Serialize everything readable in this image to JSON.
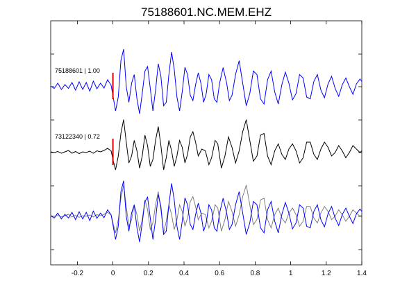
{
  "chart_data": {
    "type": "line",
    "title": "75188601.NC.MEM.EHZ",
    "xlabel": "",
    "ylabel": "",
    "xlim": [
      -0.35,
      1.4
    ],
    "xticks": [
      -0.2,
      0,
      0.2,
      0.4,
      0.6,
      0.8,
      1,
      1.2,
      1.4
    ],
    "xtick_labels": [
      "-0.2",
      "0",
      "0.2",
      "0.4",
      "0.6",
      "0.8",
      "1",
      "1.2",
      "1.4"
    ],
    "grid": false,
    "legend": "none",
    "pick_time": 0,
    "series": [
      {
        "label": "75188601 | 1.00",
        "color": "#0000ff",
        "row": 0,
        "points": [
          [
            -0.35,
            0.02
          ],
          [
            -0.33,
            -0.05
          ],
          [
            -0.31,
            0.1
          ],
          [
            -0.29,
            -0.08
          ],
          [
            -0.27,
            0.06
          ],
          [
            -0.25,
            -0.05
          ],
          [
            -0.23,
            0.12
          ],
          [
            -0.21,
            -0.1
          ],
          [
            -0.19,
            0.14
          ],
          [
            -0.17,
            -0.08
          ],
          [
            -0.15,
            0.12
          ],
          [
            -0.13,
            -0.13
          ],
          [
            -0.11,
            0.16
          ],
          [
            -0.09,
            -0.06
          ],
          [
            -0.07,
            0.1
          ],
          [
            -0.05,
            -0.04
          ],
          [
            -0.03,
            0.2
          ],
          [
            -0.01,
            0.04
          ],
          [
            0.0,
            -0.25
          ],
          [
            0.015,
            -0.7
          ],
          [
            0.03,
            -0.3
          ],
          [
            0.045,
            0.75
          ],
          [
            0.06,
            1.08
          ],
          [
            0.075,
            0.0
          ],
          [
            0.09,
            -0.45
          ],
          [
            0.105,
            0.1
          ],
          [
            0.12,
            0.35
          ],
          [
            0.135,
            -0.35
          ],
          [
            0.15,
            -0.78
          ],
          [
            0.165,
            -0.2
          ],
          [
            0.18,
            0.45
          ],
          [
            0.195,
            0.58
          ],
          [
            0.21,
            -0.05
          ],
          [
            0.225,
            -0.7
          ],
          [
            0.24,
            -0.1
          ],
          [
            0.255,
            0.66
          ],
          [
            0.27,
            0.3
          ],
          [
            0.285,
            -0.55
          ],
          [
            0.3,
            -0.45
          ],
          [
            0.315,
            0.35
          ],
          [
            0.33,
            1.0
          ],
          [
            0.345,
            0.5
          ],
          [
            0.36,
            -0.3
          ],
          [
            0.375,
            -0.7
          ],
          [
            0.39,
            -0.15
          ],
          [
            0.405,
            0.56
          ],
          [
            0.42,
            0.35
          ],
          [
            0.435,
            -0.25
          ],
          [
            0.45,
            -0.4
          ],
          [
            0.465,
            0.05
          ],
          [
            0.48,
            0.4
          ],
          [
            0.495,
            0.1
          ],
          [
            0.51,
            -0.45
          ],
          [
            0.525,
            -0.2
          ],
          [
            0.54,
            0.35
          ],
          [
            0.555,
            0.2
          ],
          [
            0.57,
            -0.35
          ],
          [
            0.585,
            -0.45
          ],
          [
            0.6,
            0.1
          ],
          [
            0.62,
            0.55
          ],
          [
            0.64,
            0.1
          ],
          [
            0.655,
            -0.4
          ],
          [
            0.67,
            -0.25
          ],
          [
            0.69,
            0.35
          ],
          [
            0.71,
            0.75
          ],
          [
            0.73,
            0.1
          ],
          [
            0.75,
            -0.55
          ],
          [
            0.77,
            -0.2
          ],
          [
            0.79,
            0.45
          ],
          [
            0.81,
            0.35
          ],
          [
            0.83,
            -0.35
          ],
          [
            0.85,
            -0.5
          ],
          [
            0.87,
            0.2
          ],
          [
            0.89,
            0.45
          ],
          [
            0.91,
            -0.15
          ],
          [
            0.93,
            -0.5
          ],
          [
            0.95,
            0.05
          ],
          [
            0.97,
            0.42
          ],
          [
            0.99,
            0.1
          ],
          [
            1.01,
            -0.38
          ],
          [
            1.03,
            -0.2
          ],
          [
            1.05,
            0.35
          ],
          [
            1.07,
            0.25
          ],
          [
            1.09,
            -0.3
          ],
          [
            1.11,
            -0.35
          ],
          [
            1.13,
            0.15
          ],
          [
            1.15,
            0.35
          ],
          [
            1.17,
            -0.1
          ],
          [
            1.19,
            -0.32
          ],
          [
            1.21,
            0.08
          ],
          [
            1.23,
            0.3
          ],
          [
            1.25,
            -0.05
          ],
          [
            1.27,
            -0.28
          ],
          [
            1.29,
            0.05
          ],
          [
            1.31,
            0.25
          ],
          [
            1.33,
            0.0
          ],
          [
            1.35,
            -0.22
          ],
          [
            1.37,
            0.08
          ],
          [
            1.39,
            0.22
          ],
          [
            1.4,
            0.15
          ]
        ]
      },
      {
        "label": "73122340 | 0.72",
        "color": "#000000",
        "row": 1,
        "points": [
          [
            -0.35,
            0.02
          ],
          [
            -0.33,
            0.0
          ],
          [
            -0.31,
            0.03
          ],
          [
            -0.29,
            -0.02
          ],
          [
            -0.27,
            0.02
          ],
          [
            -0.25,
            0.06
          ],
          [
            -0.23,
            -0.02
          ],
          [
            -0.21,
            0.03
          ],
          [
            -0.19,
            -0.03
          ],
          [
            -0.17,
            0.02
          ],
          [
            -0.15,
            0.0
          ],
          [
            -0.13,
            0.04
          ],
          [
            -0.11,
            -0.02
          ],
          [
            -0.09,
            0.05
          ],
          [
            -0.07,
            0.02
          ],
          [
            -0.05,
            0.06
          ],
          [
            -0.03,
            0.12
          ],
          [
            -0.01,
            0.05
          ],
          [
            0.0,
            -0.2
          ],
          [
            0.015,
            -0.5
          ],
          [
            0.03,
            -0.1
          ],
          [
            0.045,
            0.55
          ],
          [
            0.06,
            0.95
          ],
          [
            0.075,
            0.3
          ],
          [
            0.09,
            -0.3
          ],
          [
            0.105,
            -0.1
          ],
          [
            0.12,
            0.35
          ],
          [
            0.135,
            0.05
          ],
          [
            0.15,
            -0.45
          ],
          [
            0.165,
            -0.1
          ],
          [
            0.18,
            0.5
          ],
          [
            0.195,
            0.2
          ],
          [
            0.21,
            -0.4
          ],
          [
            0.225,
            -0.2
          ],
          [
            0.24,
            0.35
          ],
          [
            0.255,
            0.75
          ],
          [
            0.27,
            0.2
          ],
          [
            0.285,
            -0.5
          ],
          [
            0.3,
            -0.15
          ],
          [
            0.315,
            0.35
          ],
          [
            0.33,
            0.05
          ],
          [
            0.345,
            -0.4
          ],
          [
            0.36,
            -0.1
          ],
          [
            0.375,
            0.35
          ],
          [
            0.39,
            0.15
          ],
          [
            0.405,
            -0.3
          ],
          [
            0.42,
            -0.05
          ],
          [
            0.435,
            0.45
          ],
          [
            0.45,
            0.6
          ],
          [
            0.465,
            0.3
          ],
          [
            0.48,
            -0.1
          ],
          [
            0.5,
            0.1
          ],
          [
            0.52,
            0.05
          ],
          [
            0.54,
            -0.35
          ],
          [
            0.555,
            -0.15
          ],
          [
            0.575,
            0.35
          ],
          [
            0.59,
            0.25
          ],
          [
            0.61,
            -0.45
          ],
          [
            0.63,
            -0.1
          ],
          [
            0.65,
            0.45
          ],
          [
            0.67,
            0.15
          ],
          [
            0.69,
            -0.3
          ],
          [
            0.71,
            0.05
          ],
          [
            0.73,
            0.6
          ],
          [
            0.75,
            0.95
          ],
          [
            0.77,
            0.35
          ],
          [
            0.79,
            -0.25
          ],
          [
            0.81,
            -0.1
          ],
          [
            0.83,
            0.5
          ],
          [
            0.85,
            0.55
          ],
          [
            0.87,
            -0.1
          ],
          [
            0.89,
            -0.35
          ],
          [
            0.91,
            0.05
          ],
          [
            0.93,
            0.25
          ],
          [
            0.95,
            -0.05
          ],
          [
            0.97,
            -0.2
          ],
          [
            0.99,
            0.1
          ],
          [
            1.01,
            0.25
          ],
          [
            1.03,
            0.05
          ],
          [
            1.05,
            -0.3
          ],
          [
            1.07,
            -0.15
          ],
          [
            1.09,
            0.3
          ],
          [
            1.11,
            0.3
          ],
          [
            1.13,
            -0.05
          ],
          [
            1.15,
            -0.2
          ],
          [
            1.17,
            0.1
          ],
          [
            1.19,
            0.3
          ],
          [
            1.21,
            0.15
          ],
          [
            1.23,
            -0.1
          ],
          [
            1.25,
            0.0
          ],
          [
            1.27,
            0.2
          ],
          [
            1.29,
            0.05
          ],
          [
            1.31,
            -0.15
          ],
          [
            1.33,
            0.0
          ],
          [
            1.35,
            0.2
          ],
          [
            1.37,
            0.1
          ],
          [
            1.39,
            0.0
          ],
          [
            1.4,
            0.05
          ]
        ]
      }
    ],
    "overlay_row": 2,
    "overlay_colors": [
      "#0000ff",
      "#7f7f7f"
    ],
    "pick_color": "#dd0000",
    "frame_color": "#000000"
  }
}
